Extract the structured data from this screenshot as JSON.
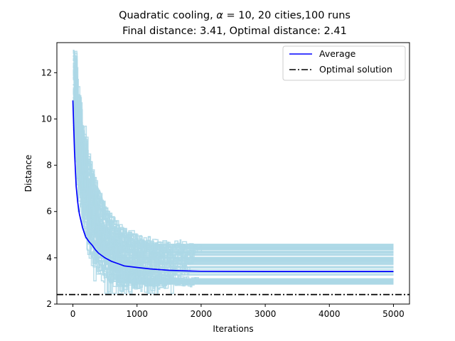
{
  "chart_data": {
    "type": "line",
    "title_line1_prefix": "Quadratic cooling, ",
    "title_alpha_symbol": "α",
    "title_alpha_rest": " = 10, 20 cities,100 runs",
    "title_line2": "Final distance: 3.41, Optimal distance: 2.41",
    "xlabel": "Iterations",
    "ylabel": "Distance",
    "xlim": [
      -250,
      5250
    ],
    "ylim": [
      2.0,
      13.3
    ],
    "x_ticks": [
      0,
      1000,
      2000,
      3000,
      4000,
      5000
    ],
    "y_ticks": [
      2,
      4,
      6,
      8,
      10,
      12
    ],
    "legend_position": "top-right",
    "runs": {
      "count": 100,
      "color": "#add8e6",
      "final_min": 2.85,
      "final_max": 4.6
    },
    "series": [
      {
        "name": "Average",
        "color": "#0000ff",
        "style": "solid",
        "x": [
          0,
          25,
          50,
          75,
          100,
          150,
          200,
          250,
          300,
          350,
          400,
          500,
          600,
          700,
          800,
          1000,
          1200,
          1500,
          1800,
          2000,
          3000,
          4000,
          5000
        ],
        "y": [
          10.8,
          8.6,
          7.1,
          6.4,
          5.9,
          5.3,
          4.9,
          4.7,
          4.55,
          4.35,
          4.2,
          4.0,
          3.85,
          3.75,
          3.65,
          3.58,
          3.52,
          3.46,
          3.43,
          3.42,
          3.41,
          3.41,
          3.41
        ]
      },
      {
        "name": "Optimal solution",
        "color": "#000000",
        "style": "dashdot",
        "y": 2.41
      }
    ]
  }
}
